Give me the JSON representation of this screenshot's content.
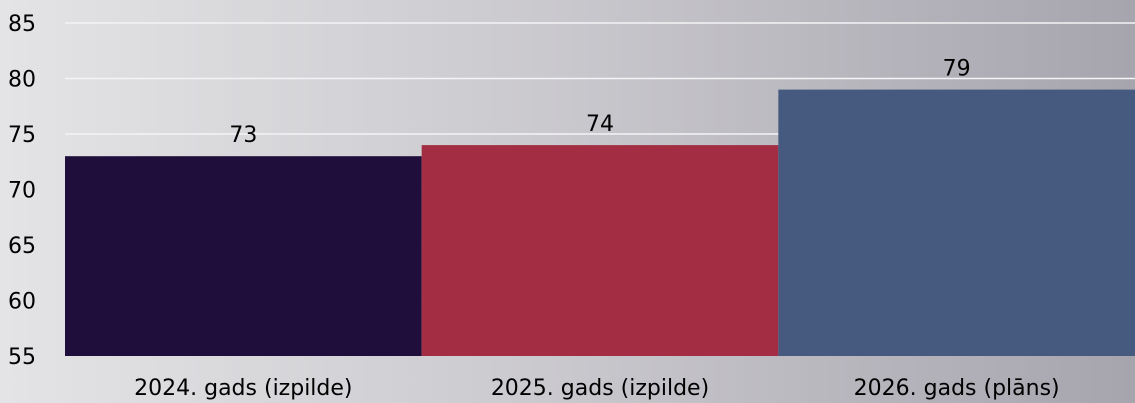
{
  "chart_data": {
    "type": "bar",
    "categories": [
      "2024. gads (izpilde)",
      "2025. gads (izpilde)",
      "2026. gads (plāns)"
    ],
    "values": [
      73,
      74,
      79
    ],
    "value_labels": [
      "73",
      "74",
      "79"
    ],
    "colors": [
      "#1f0d3b",
      "#a32e43",
      "#465a80"
    ],
    "ylim": [
      55,
      85
    ],
    "yticks": [
      55,
      60,
      65,
      70,
      75,
      80,
      85
    ],
    "ytick_labels": [
      "55",
      "60",
      "65",
      "70",
      "75",
      "80",
      "85"
    ],
    "grid": true,
    "title": "",
    "xlabel": "",
    "ylabel": ""
  }
}
